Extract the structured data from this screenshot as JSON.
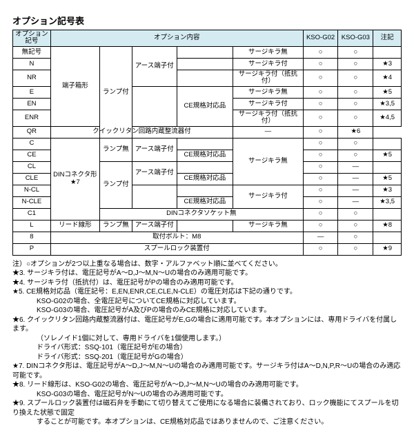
{
  "title": "オプション記号表",
  "hdr": {
    "c1": "オプション記号",
    "c2": "オプション内容",
    "c3": "KSO-G02",
    "c4": "KSO-G03",
    "c5": "注記"
  },
  "codes": [
    "無記号",
    "N",
    "NR",
    "E",
    "EN",
    "ENR",
    "QR",
    "C",
    "CE",
    "CL",
    "CLE",
    "N-CL",
    "N-CLE",
    "C1",
    "L",
    "8",
    "P"
  ],
  "t": {
    "tanshi": "端子箱形",
    "lampOn": "ランプ付",
    "lampOff": "ランプ無",
    "earth": "アース端子付",
    "ce": "CE規格対応品",
    "skNone": "サージキラ無",
    "skOn": "サージキラ付",
    "skRes": "サージキラ付（抵抗付）",
    "qr": "クイックリタン回路内蔵整流器付",
    "din": "DINコネクタ形",
    "dinS": "DINコネクタソケット無",
    "lead": "リード線形",
    "m8": "取付ボルト：M8",
    "spool": "スプールロック装置付"
  },
  "stars": {
    "s7": "★7",
    "s3": "★3",
    "s4": "★4",
    "s5": "★5",
    "s35": "★3,5",
    "s45": "★4,5",
    "s6": "★6",
    "s8": "★8",
    "s9": "★9"
  },
  "marks": {
    "o": "○",
    "d": "—"
  },
  "notes": [
    "注）○オプションが2つ以上重なる場合は、数字・アルファベット順に並べてください。",
    "★3. サージキラ付は、電圧記号がA～D,J～M,N～Uの場合のみ適用可能です。",
    "★4. サージキラ付（抵抗付）は、電圧記号がPの場合のみ適用可能です。",
    "★5. CE規格対応品（電圧記号：E,EN,ENR,CE,CLE,N-CLE）の電圧対応は下記の通りです。",
    "KSO-G02の場合、全電圧記号についてCE規格に対応しています。",
    "KSO-G03の場合、電圧記号がA及びPの場合のみCE規格に対応しています。",
    "★6. クイックリタン回路内蔵整流器付は、電圧記号がE,Gの場合に適用可能です。本オプションには、専用ドライバを付属します。",
    "（ソレノイド1個に対して、専用ドライバを1個使用します。）",
    "ドライバ形式：SSQ-101（電圧記号がEの場合）",
    "ドライバ形式：SSQ-201（電圧記号がGの場合）",
    "★7. DINコネクタ形は、電圧記号がA～D,J～M,N～Uの場合のみ適用可能です。サージキラ付はA～D,N,P,R～Uの場合のみ適応可能です。",
    "★8. リード線形は、KSO-G02の場合、電圧記号がA～D,J～M,N～Uの場合のみ適用可能です。",
    "KSO-G03の場合、電圧記号がN～Uの場合のみ適用可能です。",
    "★9. スプールロック装置付は磁石弁を手動にて切り替えてご使用になる場合に装備されており、ロック機能にてスプールを切り換えた状態で固定",
    "することが可能です。本オプションは、CE規格対応品ではありませんので、ご注意ください。"
  ],
  "indent": [
    4,
    5,
    7,
    8,
    9,
    12,
    14
  ],
  "style": {
    "hdrBg": "#d4ebf2",
    "border": "#000000",
    "fontSize": 10
  }
}
